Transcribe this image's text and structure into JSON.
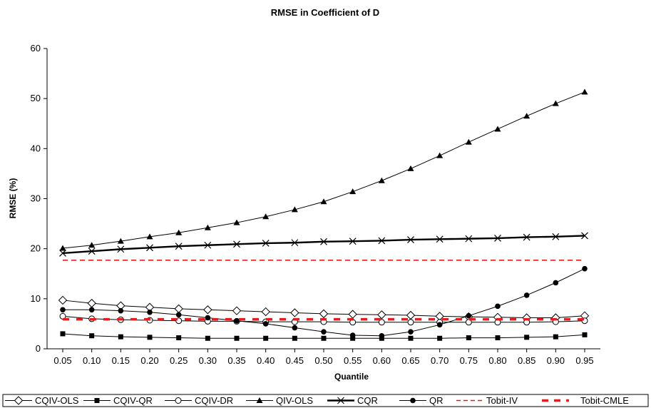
{
  "chart_data": {
    "type": "line",
    "title": "RMSE in Coefficient of D",
    "xlabel": "Quantile",
    "ylabel": "RMSE (%)",
    "ylim": [
      0,
      60
    ],
    "yticks": [
      "0",
      "10",
      "20",
      "30",
      "40",
      "50",
      "60"
    ],
    "categories": [
      "0.05",
      "0.10",
      "0.15",
      "0.20",
      "0.25",
      "0.30",
      "0.35",
      "0.40",
      "0.45",
      "0.50",
      "0.55",
      "0.60",
      "0.65",
      "0.70",
      "0.75",
      "0.80",
      "0.85",
      "0.90",
      "0.95"
    ],
    "grid": false,
    "legend_position": "bottom",
    "series": [
      {
        "name": "CQIV-OLS",
        "marker": "diamond-open",
        "color": "#000000",
        "dash": "solid",
        "values": [
          9.7,
          9.1,
          8.6,
          8.3,
          8.0,
          7.8,
          7.6,
          7.4,
          7.2,
          7.0,
          6.9,
          6.8,
          6.7,
          6.5,
          6.4,
          6.3,
          6.2,
          6.2,
          6.6
        ]
      },
      {
        "name": "CQIV-QR",
        "marker": "square-filled",
        "color": "#000000",
        "dash": "solid",
        "values": [
          3.0,
          2.6,
          2.4,
          2.3,
          2.2,
          2.1,
          2.1,
          2.1,
          2.1,
          2.1,
          2.1,
          2.1,
          2.1,
          2.1,
          2.2,
          2.2,
          2.3,
          2.4,
          2.8
        ]
      },
      {
        "name": "CQIV-DR",
        "marker": "circle-open",
        "color": "#000000",
        "dash": "solid",
        "values": [
          6.5,
          6.0,
          5.8,
          5.7,
          5.6,
          5.5,
          5.5,
          5.4,
          5.4,
          5.4,
          5.3,
          5.3,
          5.3,
          5.3,
          5.3,
          5.3,
          5.3,
          5.4,
          5.6
        ]
      },
      {
        "name": "QIV-OLS",
        "marker": "triangle-filled",
        "color": "#000000",
        "dash": "solid",
        "values": [
          20.1,
          20.7,
          21.5,
          22.4,
          23.2,
          24.2,
          25.2,
          26.4,
          27.8,
          29.4,
          31.4,
          33.6,
          36.0,
          38.6,
          41.3,
          43.9,
          46.5,
          49.0,
          51.3
        ]
      },
      {
        "name": "CQR",
        "marker": "x",
        "color": "#000000",
        "dash": "solid",
        "width": 2.4,
        "values": [
          19.1,
          19.5,
          19.9,
          20.2,
          20.5,
          20.7,
          20.9,
          21.1,
          21.2,
          21.4,
          21.5,
          21.6,
          21.8,
          21.9,
          22.0,
          22.1,
          22.3,
          22.4,
          22.6
        ]
      },
      {
        "name": "QR",
        "marker": "circle-filled",
        "color": "#000000",
        "dash": "solid",
        "values": [
          7.8,
          7.8,
          7.6,
          7.3,
          6.8,
          6.2,
          5.6,
          5.0,
          4.2,
          3.4,
          2.7,
          2.6,
          3.4,
          4.8,
          6.6,
          8.5,
          10.7,
          13.2,
          16.0
        ]
      },
      {
        "name": "Tobit-IV",
        "marker": "none",
        "color": "#e02020",
        "dash": "dashed",
        "values": [
          17.7,
          17.7,
          17.7,
          17.7,
          17.7,
          17.7,
          17.7,
          17.7,
          17.7,
          17.7,
          17.7,
          17.7,
          17.7,
          17.7,
          17.7,
          17.7,
          17.7,
          17.7,
          17.7
        ]
      },
      {
        "name": "Tobit-CMLE",
        "marker": "none",
        "color": "#e02020",
        "dash": "thick-dashed",
        "values": [
          5.9,
          5.9,
          5.9,
          5.9,
          5.9,
          5.9,
          5.9,
          5.9,
          5.9,
          5.9,
          5.9,
          5.9,
          5.9,
          5.9,
          5.9,
          5.9,
          5.9,
          5.9,
          5.9
        ]
      }
    ]
  }
}
